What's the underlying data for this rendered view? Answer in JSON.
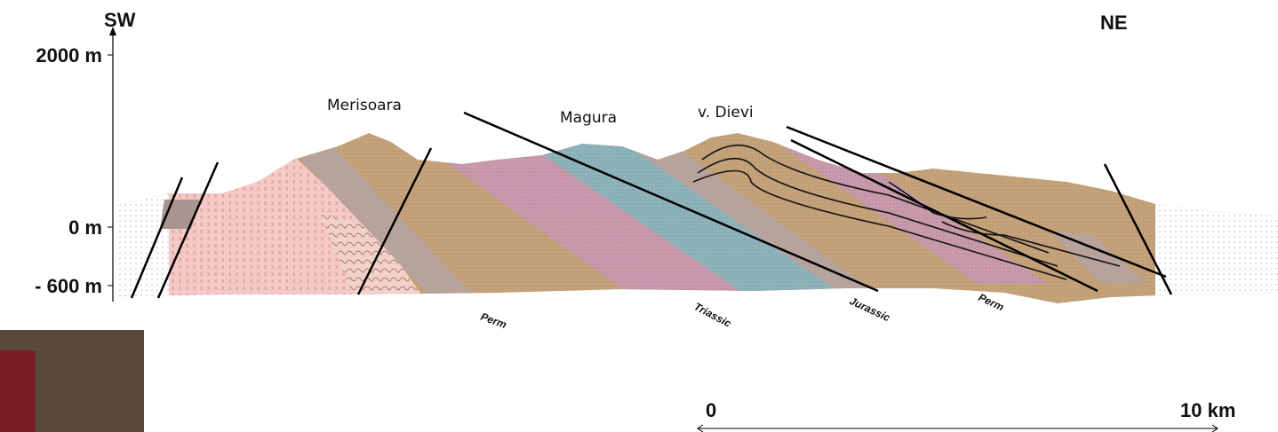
{
  "orientation": {
    "left": "SW",
    "right": "NE"
  },
  "depth_axis": {
    "labels": [
      "2000 m",
      "0 m",
      "- 600 m"
    ]
  },
  "peaks": [
    "Merisoara",
    "Magura",
    "v. Dievi"
  ],
  "formations": [
    "Perm",
    "Triassic",
    "Jurassic",
    "Perm"
  ],
  "scale_bar": {
    "start": "0",
    "end": "10 km"
  }
}
